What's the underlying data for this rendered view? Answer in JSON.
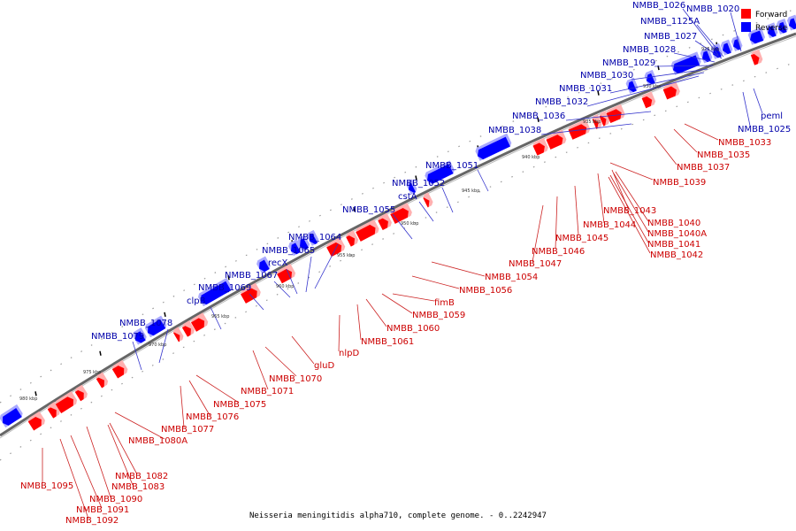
{
  "colors": {
    "forward": "#ff0000",
    "reverse": "#0000ff",
    "forward_label": "#cc0000",
    "reverse_label": "#0000aa",
    "backbone": "#777777"
  },
  "legend": {
    "forward": "Forward",
    "reverse": "Reverse"
  },
  "caption": "Neisseria meningitidis alpha710, complete genome. - 0..2242947",
  "ticks": [
    "980 kbp",
    "975 kbp",
    "970 kbp",
    "965 kbp",
    "960 kbp",
    "955 kbp",
    "950 kbp",
    "945 kbp",
    "940 kbp",
    "935 kbp",
    "930 kbp",
    "925 kbp"
  ],
  "reverse_labels": [
    "NMBB_1026",
    "NMBB_1020",
    "NMBB_1125A",
    "NMBB_1027",
    "NMBB_1028",
    "NMBB_1029",
    "NMBB_1030",
    "NMBB_1031",
    "NMBB_1032",
    "NMBB_1036",
    "NMBB_1038",
    "NMBB_1051",
    "NMBB_1052",
    "cstA",
    "NMBB_1055",
    "NMBB_1064",
    "NMBB_1065",
    "recX",
    "NMBB_1067",
    "NMBB_1069",
    "clpB",
    "NMBB_1078",
    "NMBB_1079",
    "peml",
    "NMBB_1025"
  ],
  "forward_labels": [
    "NMBB_1033",
    "NMBB_1035",
    "NMBB_1037",
    "NMBB_1039",
    "NMBB_1043",
    "NMBB_1040",
    "NMBB_1040A",
    "NMBB_1041",
    "NMBB_1042",
    "NMBB_1044",
    "NMBB_1045",
    "NMBB_1046",
    "NMBB_1047",
    "NMBB_1054",
    "NMBB_1056",
    "fimB",
    "NMBB_1059",
    "NMBB_1060",
    "NMBB_1061",
    "nlpD",
    "gluD",
    "NMBB_1070",
    "NMBB_1071",
    "NMBB_1075",
    "NMBB_1076",
    "NMBB_1077",
    "NMBB_1080A",
    "NMBB_1082",
    "NMBB_1083",
    "NMBB_1090",
    "NMBB_1091",
    "NMBB_1092",
    "NMBB_1095"
  ]
}
